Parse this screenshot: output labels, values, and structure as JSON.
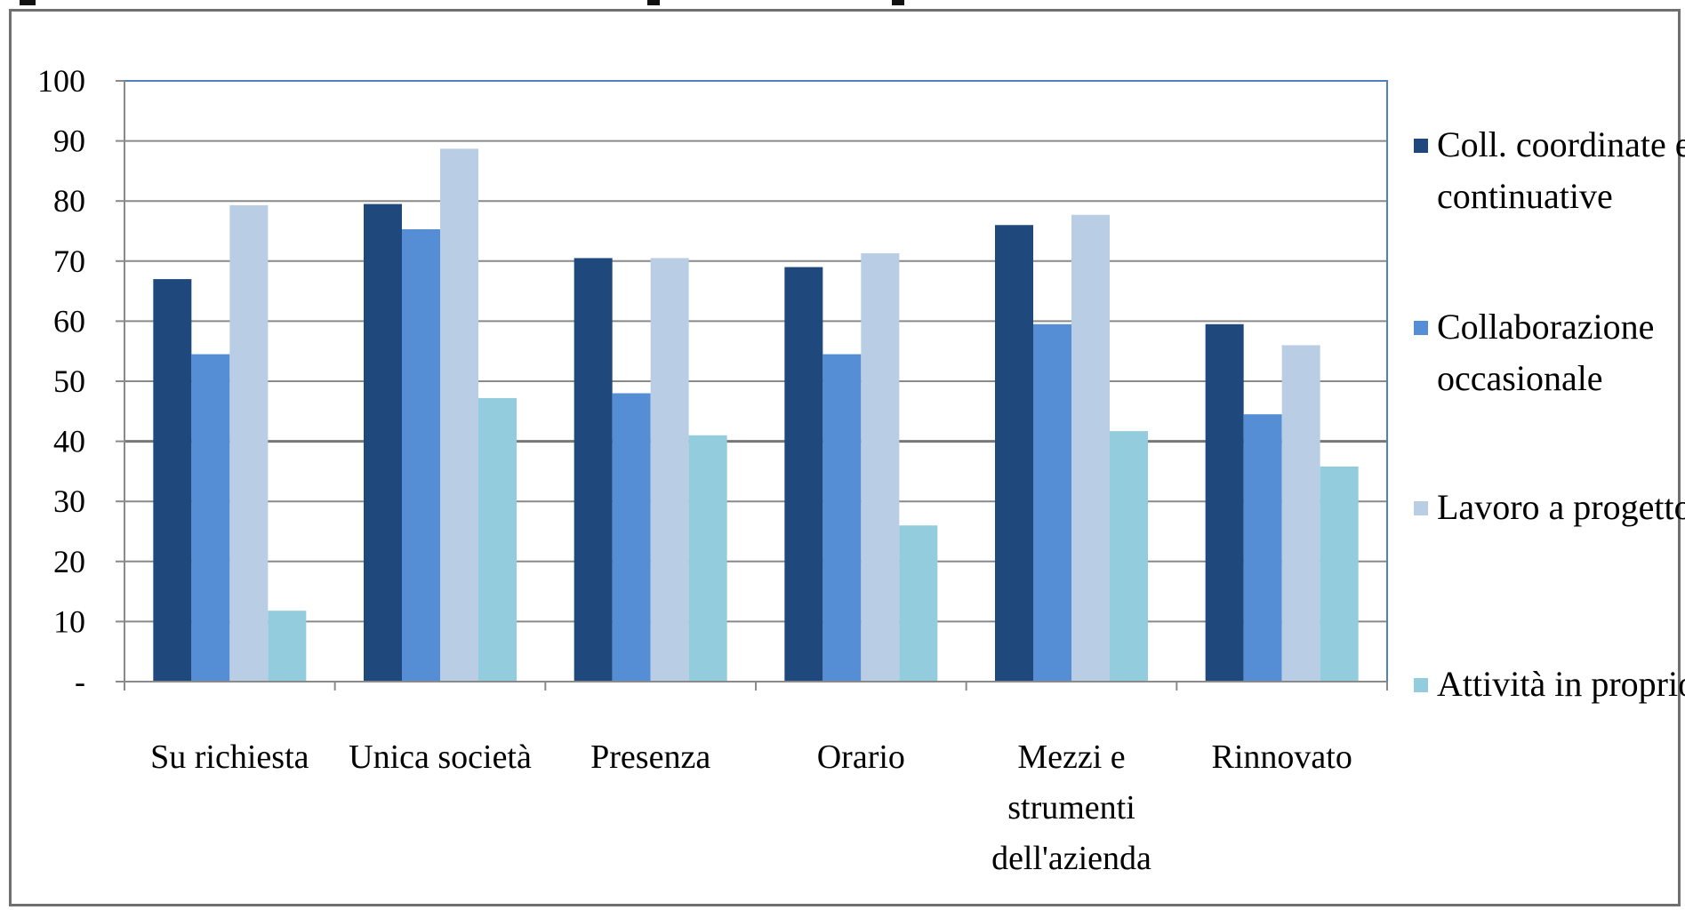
{
  "chart_data": {
    "type": "bar",
    "title": "",
    "xlabel": "",
    "ylabel": "",
    "ylim": [
      0,
      100
    ],
    "yticks": [
      {
        "value": 0,
        "label": "-"
      },
      {
        "value": 10,
        "label": "10"
      },
      {
        "value": 20,
        "label": "20"
      },
      {
        "value": 30,
        "label": "30"
      },
      {
        "value": 40,
        "label": "40"
      },
      {
        "value": 50,
        "label": "50"
      },
      {
        "value": 60,
        "label": "60"
      },
      {
        "value": 70,
        "label": "70"
      },
      {
        "value": 80,
        "label": "80"
      },
      {
        "value": 90,
        "label": "90"
      },
      {
        "value": 100,
        "label": "100"
      }
    ],
    "categories": [
      [
        "Su richiesta"
      ],
      [
        "Unica società"
      ],
      [
        "Presenza"
      ],
      [
        "Orario"
      ],
      [
        "Mezzi e",
        "strumenti",
        "dell'azienda"
      ],
      [
        "Rinnovato"
      ]
    ],
    "series": [
      {
        "name": [
          "Coll. coordinate e",
          "continuative"
        ],
        "color": "#1f497d",
        "values": [
          67,
          79.5,
          70.5,
          69,
          76,
          59.5
        ]
      },
      {
        "name": [
          "Collaborazione",
          "occasionale"
        ],
        "color": "#558ed5",
        "values": [
          54.5,
          75.3,
          48,
          54.5,
          59.5,
          44.5
        ]
      },
      {
        "name": [
          "Lavoro a progetto"
        ],
        "color": "#b9cde5",
        "values": [
          79.3,
          88.7,
          70.5,
          71.3,
          77.7,
          56
        ]
      },
      {
        "name": [
          "Attività in proprio"
        ],
        "color": "#93cddd",
        "values": [
          11.8,
          47.2,
          41,
          26,
          41.7,
          35.8
        ]
      }
    ],
    "grid": true,
    "legend": "right"
  }
}
